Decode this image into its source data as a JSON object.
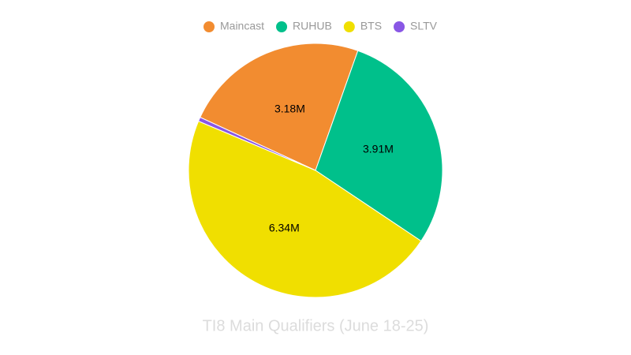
{
  "chart_data": {
    "type": "pie",
    "title": "TI8 Main Qualifiers (June 18-25)",
    "categories": [
      "Maincast",
      "RUHUB",
      "BTS",
      "SLTV"
    ],
    "values": [
      3.18,
      3.91,
      6.34,
      0.07
    ],
    "value_labels": [
      "3.18M",
      "3.91M",
      "6.34M",
      null
    ],
    "colors": [
      "#f28c30",
      "#00c08b",
      "#f0df00",
      "#8957e5"
    ],
    "legend": "top"
  }
}
